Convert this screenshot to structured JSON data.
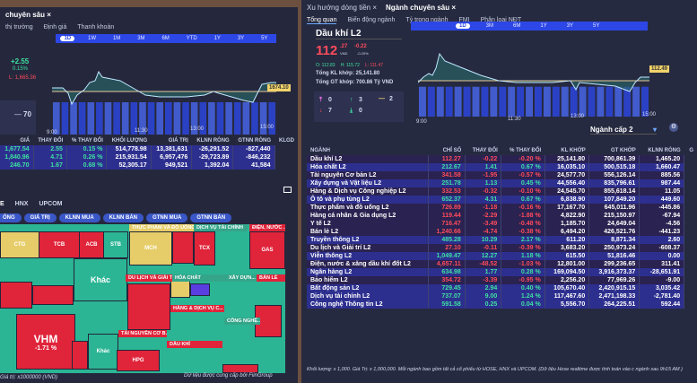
{
  "left": {
    "tab_title": "chuyên sâu",
    "close": "×",
    "subtabs": [
      "thị trường",
      "Định giá",
      "Thanh khoản"
    ],
    "periods": [
      "1D",
      "1W",
      "1M",
      "3M",
      "6M",
      "YTD",
      "1Y",
      "3Y",
      "5Y"
    ],
    "change": "+2.55",
    "change_pct": "0.15%",
    "low": "L: 1,665.36",
    "count_flat": "70",
    "price_tag": "1674.10",
    "times": [
      "9:00",
      "11:30",
      "13:00",
      "15:00"
    ],
    "table": {
      "headers": [
        "GIÁ",
        "THAY ĐỔI",
        "% THAY ĐỔI",
        "KHỐI LƯỢNG",
        "GIÁ TRỊ",
        "KLNN RÒNG",
        "GTNN RÒNG",
        "KLGD"
      ],
      "rows": [
        [
          "1,677.54",
          "2.55",
          "0.15 %",
          "514,778.98",
          "13,381,631",
          "-26,291.52",
          "-827,440"
        ],
        [
          "1,840.96",
          "4.71",
          "0.26 %",
          "215,931.54",
          "6,957,476",
          "-29,723.89",
          "-846,232"
        ],
        [
          "246.70",
          "1.67",
          "0.68 %",
          "52,305.17",
          "949,521",
          "1,392.04",
          "41,584"
        ]
      ]
    },
    "exchanges": [
      "E",
      "HNX",
      "UPCOM"
    ],
    "metrics": [
      "ỐNG",
      "GIÁ TRỊ",
      "KLNN MUA",
      "KLNN BÁN",
      "GTNN MUA",
      "GTNN BÁN"
    ],
    "treemap": {
      "cells": [
        "CTG",
        "TCB",
        "ACB",
        "STB",
        "MCH",
        "TCX",
        "GAS",
        "Khác",
        "VHM",
        "-1.71 %",
        "Khác",
        "HPG"
      ],
      "groups": [
        "THỰC PHẨM VÀ ĐỒ UỐNG",
        "DỊCH VỤ TÀI CHÍNH",
        "ĐIỆN, NƯỚC ...",
        "DU LỊCH VÀ GIẢI TRÍ",
        "HÓA CHẤT",
        "XÂY DỰN...",
        "BÁN LẺ",
        "HÀNG & DỊCH VỤ C...",
        "CÔNG NGHỆ...",
        "TÀI NGUYÊN CƠ B...",
        "DẦU KHÍ"
      ]
    },
    "footer_left": "Giá trị: x1000000 (VND)",
    "footer_right": "Dữ liệu được cung cấp bởi FiinGroup"
  },
  "right": {
    "tabs": [
      "Xu hướng dòng tiền",
      "Ngành chuyên sâu"
    ],
    "close": "×",
    "subtabs": [
      "Tổng quan",
      "Biến động ngành",
      "Tỷ trọng ngành",
      "FMI",
      "Phân loại NĐT"
    ],
    "periods": [
      "1D",
      "3M",
      "6M",
      "1Y",
      "3Y",
      "5Y"
    ],
    "sector": "Dầu khí L2",
    "price_int": "112",
    "price_dec": ".27",
    "currency": "VND",
    "change": "-0.22",
    "change_pct": "-0.20%",
    "ohl": {
      "o": "O: 112.83",
      "h": "H: 115.72",
      "l": "L: 111.47"
    },
    "total_vol": "Tổng KL khớp: 25,141.80",
    "total_val": "Tổng GT khớp: 700.86 Tỷ VND",
    "counts": {
      "ceiling": "0",
      "up": "3",
      "flat": "2",
      "down": "7",
      "floor": "0"
    },
    "price_tag": "112.49",
    "times": [
      "9:00",
      "11:30",
      "13:00",
      "15:00"
    ],
    "level_select": "Ngành cấp 2",
    "table": {
      "headers": [
        "NGÀNH",
        "CHỈ SỐ",
        "THAY ĐỔI",
        "% THAY ĐỔI",
        "KL KHỚP",
        "GT KHỚP",
        "KLNN RÒNG",
        "G"
      ],
      "rows": [
        [
          "Dầu khí L2",
          "112.27",
          "-0.22",
          "-0.20 %",
          "25,141.80",
          "700,861.39",
          "1,465.20"
        ],
        [
          "Hóa chất L2",
          "212.67",
          "1.41",
          "0.67 %",
          "16,035.10",
          "500,515.18",
          "1,660.47"
        ],
        [
          "Tài nguyên Cơ bản L2",
          "341.58",
          "-1.95",
          "-0.57 %",
          "24,577.70",
          "556,126.14",
          "885.56"
        ],
        [
          "Xây dựng và Vật liệu L2",
          "251.78",
          "1.13",
          "0.45 %",
          "44,556.40",
          "835,796.61",
          "987.44"
        ],
        [
          "Hàng & Dịch vụ Công nghiệp L2",
          "332.53",
          "-0.32",
          "-0.10 %",
          "24,545.70",
          "855,618.14",
          "11.05"
        ],
        [
          "Ô tô và phụ tùng L2",
          "652.37",
          "4.31",
          "0.67 %",
          "6,838.90",
          "107,849.20",
          "449.60"
        ],
        [
          "Thực phẩm và đồ uống L2",
          "726.89",
          "-1.18",
          "-0.16 %",
          "17,167.70",
          "645,011.96",
          "-445.86"
        ],
        [
          "Hàng cá nhân & Gia dụng L2",
          "119.44",
          "-2.29",
          "-1.88 %",
          "4,822.90",
          "215,150.97",
          "-67.94"
        ],
        [
          "Y tế L2",
          "716.47",
          "-3.49",
          "-0.48 %",
          "1,185.70",
          "24,649.04",
          "-4.56"
        ],
        [
          "Bán lẻ L2",
          "1,240.66",
          "-4.74",
          "-0.38 %",
          "6,494.20",
          "426,521.76",
          "-441.23"
        ],
        [
          "Truyền thông L2",
          "485.28",
          "10.29",
          "2.17 %",
          "611.20",
          "8,871.34",
          "2.60"
        ],
        [
          "Du lịch và Giải trí L2",
          "27.10",
          "-0.11",
          "-0.39 %",
          "3,683.20",
          "250,973.24",
          "-608.37"
        ],
        [
          "Viễn thông L2",
          "1,049.47",
          "12.27",
          "1.18 %",
          "615.50",
          "51,816.46",
          "0.00"
        ],
        [
          "Điện, nước & xăng dầu khí đốt L2",
          "4,657.11",
          "-48.52",
          "-1.03 %",
          "12,801.00",
          "299,236.65",
          "311.41"
        ],
        [
          "Ngân hàng L2",
          "634.98",
          "1.77",
          "0.28 %",
          "169,094.50",
          "3,916,373.37",
          "-28,651.91"
        ],
        [
          "Bảo hiểm L2",
          "354.72",
          "-3.39",
          "-0.95 %",
          "2,256.20",
          "77,969.26",
          "-9.00"
        ],
        [
          "Bất động sản L2",
          "729.45",
          "2.94",
          "0.40 %",
          "105,670.40",
          "2,420,915.15",
          "3,035.42"
        ],
        [
          "Dịch vụ tài chính L2",
          "737.07",
          "9.00",
          "1.24 %",
          "117,467.60",
          "2,471,198.33",
          "-2,781.40"
        ],
        [
          "Công nghệ Thông tin L2",
          "591.58",
          "0.25",
          "0.04 %",
          "5,556.70",
          "264,225.51",
          "592.44"
        ]
      ]
    },
    "footnote": "Khối lượng: x 1,000. Giá Trị: x 1,000,000. Mỗi ngành bao gồm tất cả cổ phiếu từ HOSE, HNX và UPCOM. (Dữ liệu Hose realtime được tính toán vào c ngành sau 9h15 AM )"
  },
  "colors": {
    "up": "#3ee0a0",
    "down": "#ff4b5c",
    "accent": "#2d47e6",
    "price_tag": "#f2d36b"
  }
}
